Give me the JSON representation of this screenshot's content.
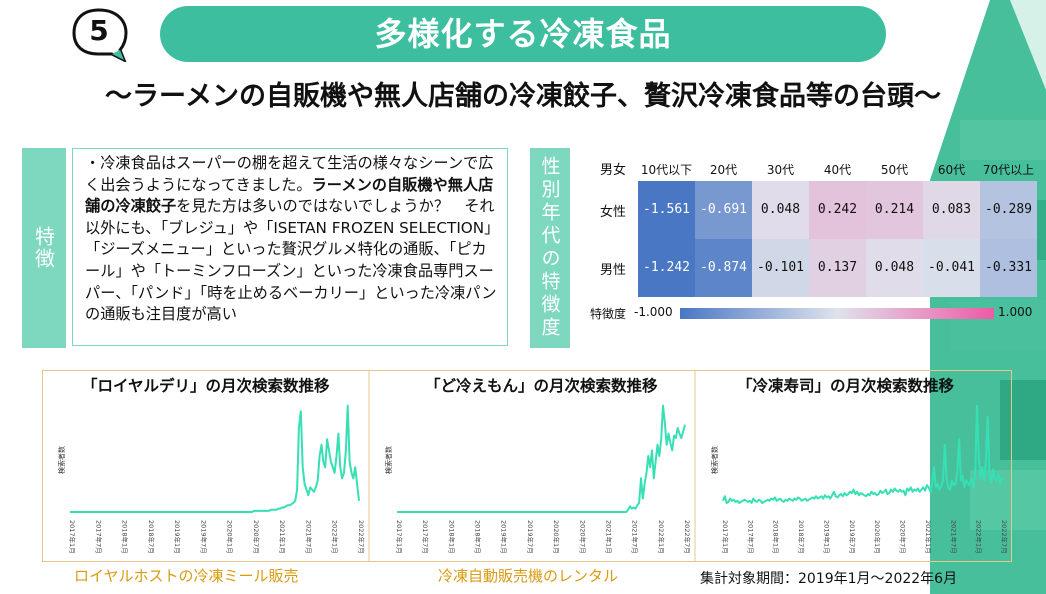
{
  "header": {
    "badge_number": "5",
    "title": "多様化する冷凍食品",
    "subtitle": "～ラーメンの自販機や無人店舗の冷凍餃子、贅沢冷凍食品等の台頭～"
  },
  "feature": {
    "label": "特徴",
    "paragraph": [
      {
        "text": "・冷凍食品はスーパーの棚を超えて生活の様々なシーンで広く出会うようになってきました。",
        "bold": false
      },
      {
        "text": "ラーメンの自販機や無人店舗の冷凍餃子",
        "bold": true
      },
      {
        "text": "を見た方は多いのではないでしょうか？　それ以外にも、「ブレジュ」や「ISETAN FROZEN SELECTION」「ジーズメニュー」といった贅沢グルメ特化の通販、「ピカール」や「トーミンフローズン」といった冷凍食品専門スーパー、「パンド」「時を止めるベーカリー」といった冷凍パンの通販も注目度が高い",
        "bold": false
      }
    ]
  },
  "heatmap": {
    "label": "性別年代の特徴度",
    "corner": "男女",
    "columns": [
      "10代以下",
      "20代",
      "30代",
      "40代",
      "50代",
      "60代",
      "70代以上"
    ],
    "rows": [
      {
        "name": "女性",
        "values": [
          "-1.561",
          "-0.691",
          "0.048",
          "0.242",
          "0.214",
          "0.083",
          "-0.289"
        ]
      },
      {
        "name": "男性",
        "values": [
          "-1.242",
          "-0.874",
          "-0.101",
          "0.137",
          "0.048",
          "-0.041",
          "-0.331"
        ]
      }
    ],
    "legend_label": "特徴度",
    "legend_min": "-1.000",
    "legend_max": "1.000",
    "colors": {
      "neg": "#4a77c4",
      "zero": "#dfe3ec",
      "pos": "#ee5aa6"
    }
  },
  "charts": {
    "ylabel": "検索者数",
    "line_color": "#36e0b4",
    "xticks": [
      "2017年1月",
      "2017年7月",
      "2018年1月",
      "2018年7月",
      "2019年1月",
      "2019年7月",
      "2020年1月",
      "2020年7月",
      "2021年1月",
      "2021年7月",
      "2022年1月",
      "2022年7月"
    ],
    "items": [
      {
        "title": "「ロイヤルデリ」の月次検索数推移",
        "values": [
          0,
          0,
          0,
          0,
          0,
          0,
          0,
          0,
          0,
          0,
          0,
          0,
          0,
          0,
          0,
          0,
          0,
          0,
          0,
          0,
          0,
          0,
          0,
          0,
          0,
          0,
          0,
          0,
          0,
          0,
          0,
          0,
          0,
          0,
          0,
          0,
          0,
          0,
          0,
          0,
          0,
          0,
          0,
          0,
          0,
          0,
          0,
          0,
          0,
          0,
          0,
          0,
          0,
          0,
          0,
          0,
          0,
          0,
          0,
          0,
          0,
          0,
          0,
          0,
          0,
          0,
          0,
          0,
          0,
          0,
          0,
          0,
          0,
          0,
          0,
          0,
          0,
          0,
          0,
          0,
          0,
          0,
          0,
          0,
          0,
          0,
          0,
          0,
          0,
          0,
          0,
          0,
          0,
          0,
          0,
          0,
          0,
          0,
          1,
          1,
          1,
          1,
          1,
          1,
          1,
          1,
          1,
          2,
          2,
          2,
          2,
          3,
          3,
          4,
          4,
          5,
          6,
          6,
          7,
          8,
          10,
          20,
          75,
          90,
          40,
          25,
          20,
          15,
          22,
          20,
          18,
          22,
          28,
          50,
          60,
          45,
          40,
          65,
          55,
          45,
          40,
          35,
          50,
          70,
          40,
          30,
          35,
          55,
          95,
          45,
          35,
          30,
          40,
          25,
          10
        ]
      },
      {
        "title": "「ど冷えもん」の月次検索数推移",
        "values": [
          0,
          0,
          0,
          0,
          0,
          0,
          0,
          0,
          0,
          0,
          0,
          0,
          0,
          0,
          0,
          0,
          0,
          0,
          0,
          0,
          0,
          0,
          0,
          0,
          0,
          0,
          0,
          0,
          0,
          0,
          0,
          0,
          0,
          0,
          0,
          0,
          0,
          0,
          0,
          0,
          0,
          0,
          0,
          0,
          0,
          0,
          0,
          0,
          0,
          0,
          0,
          0,
          0,
          0,
          0,
          0,
          0,
          0,
          0,
          0,
          0,
          0,
          0,
          0,
          0,
          0,
          0,
          0,
          0,
          0,
          0,
          0,
          0,
          0,
          0,
          0,
          0,
          0,
          0,
          0,
          0,
          0,
          0,
          0,
          0,
          0,
          0,
          0,
          0,
          0,
          0,
          0,
          0,
          0,
          0,
          0,
          0,
          0,
          0,
          0,
          0,
          0,
          0,
          0,
          0,
          0,
          0,
          0,
          0,
          0,
          0,
          0,
          0,
          0,
          0,
          0,
          0,
          0,
          0,
          0,
          0,
          0,
          0,
          0,
          0,
          0,
          2,
          5,
          3,
          4,
          3,
          6,
          8,
          30,
          12,
          25,
          35,
          50,
          40,
          55,
          30,
          45,
          60,
          50,
          65,
          95,
          80,
          60,
          70,
          62,
          55,
          68,
          66,
          75,
          70,
          66,
          72,
          78
        ]
      },
      {
        "title": "「冷凍寿司」の月次検索数推移",
        "values": [
          10,
          14,
          8,
          9,
          12,
          10,
          11,
          9,
          10,
          8,
          9,
          10,
          11,
          10,
          9,
          10,
          8,
          12,
          10,
          9,
          11,
          10,
          8,
          9,
          10,
          11,
          10,
          12,
          11,
          13,
          10,
          11,
          12,
          10,
          9,
          11,
          10,
          12,
          11,
          10,
          12,
          11,
          13,
          12,
          10,
          11,
          12,
          10,
          11,
          12,
          13,
          12,
          14,
          12,
          13,
          14,
          12,
          15,
          13,
          14,
          12,
          15,
          18,
          14,
          13,
          15,
          16,
          14,
          17,
          15,
          16,
          18,
          17,
          20,
          16,
          18,
          15,
          17,
          16,
          15,
          14,
          16,
          15,
          18,
          16,
          17,
          15,
          16,
          19,
          17,
          18,
          20,
          16,
          17,
          20,
          18,
          21,
          19,
          18,
          20,
          18,
          19,
          15,
          21,
          19,
          22,
          18,
          20,
          19,
          21,
          18,
          20,
          22,
          19,
          24,
          22,
          18,
          26,
          40,
          22,
          25,
          20,
          23,
          28,
          60,
          30,
          22,
          20,
          28,
          24,
          25,
          35,
          65,
          28,
          32,
          22,
          28,
          26,
          24,
          30,
          22,
          35,
          95,
          50,
          30,
          40,
          28,
          45,
          85,
          32,
          26,
          38,
          30,
          28,
          34,
          25,
          30
        ]
      }
    ],
    "captions": [
      "ロイヤルホストの冷凍ミール販売",
      "冷凍自動販売機のレンタル"
    ],
    "period": "集計対象期間：2019年1月～2022年6月"
  }
}
